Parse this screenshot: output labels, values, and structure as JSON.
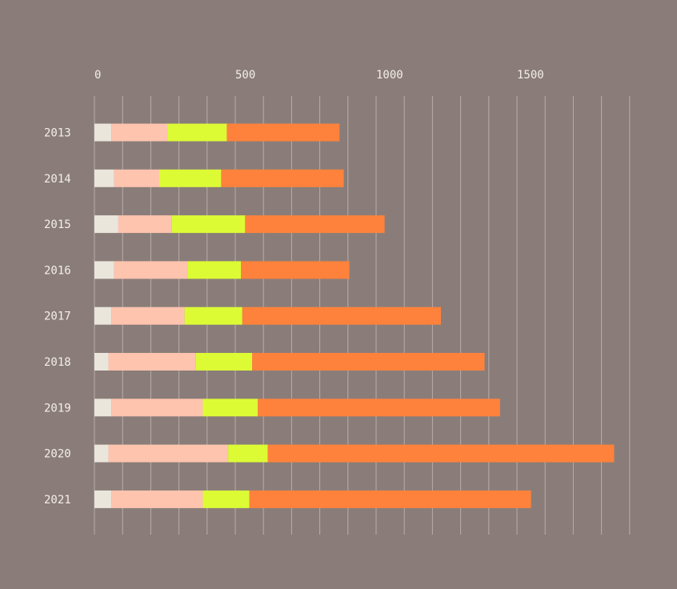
{
  "chart_data": {
    "type": "bar",
    "orientation": "horizontal",
    "stacked": true,
    "title": "",
    "xlabel": "",
    "ylabel": "",
    "xlim": [
      0,
      1900
    ],
    "x_ticks": [
      0,
      500,
      1000,
      1500
    ],
    "x_tick_labels": [
      "0",
      "500",
      "1000",
      "1500"
    ],
    "minor_grid_step": 100,
    "grid": true,
    "legend": "none",
    "categories": [
      "2013",
      "2014",
      "2015",
      "2016",
      "2017",
      "2018",
      "2019",
      "2020",
      "2021"
    ],
    "series": [
      {
        "color": "#eae6dc",
        "values": [
          60,
          70,
          85,
          70,
          60,
          50,
          60,
          50,
          60
        ]
      },
      {
        "color": "#ffc4ae",
        "values": [
          200,
          160,
          190,
          260,
          260,
          310,
          325,
          425,
          325
        ]
      },
      {
        "color": "#dcfb35",
        "values": [
          210,
          220,
          260,
          190,
          205,
          200,
          195,
          140,
          165
        ]
      },
      {
        "color": "#ff823c",
        "values": [
          400,
          435,
          495,
          385,
          705,
          825,
          860,
          1230,
          1000
        ]
      }
    ]
  }
}
